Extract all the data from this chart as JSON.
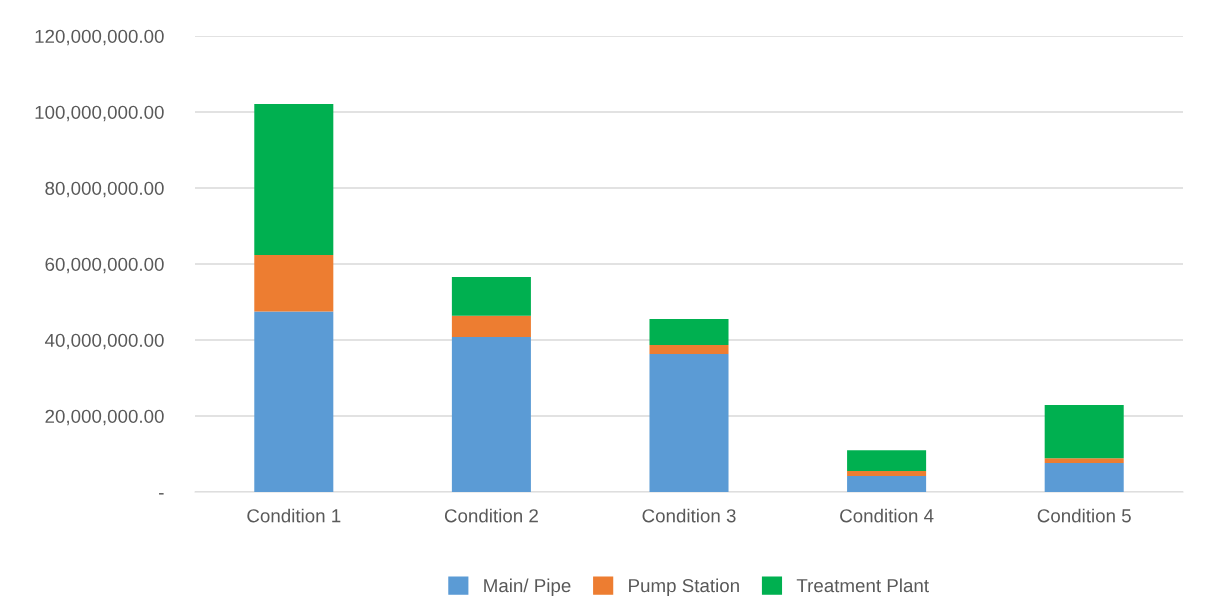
{
  "chart_data": {
    "type": "bar",
    "stacked": true,
    "categories": [
      "Condition 1",
      "Condition 2",
      "Condition 3",
      "Condition 4",
      "Condition 5"
    ],
    "series": [
      {
        "name": "Main/ Pipe",
        "color": "#5b9bd5",
        "values": [
          47500000,
          40800000,
          36300000,
          4200000,
          7600000
        ]
      },
      {
        "name": "Pump Station",
        "color": "#ed7d31",
        "values": [
          14900000,
          5600000,
          2400000,
          1300000,
          1300000
        ]
      },
      {
        "name": "Treatment Plant",
        "color": "#00b050",
        "values": [
          39700000,
          10200000,
          6800000,
          5500000,
          14000000
        ]
      }
    ],
    "ylim": [
      0,
      120000000
    ],
    "yticks": [
      {
        "value": 0,
        "label": "-"
      },
      {
        "value": 20000000,
        "label": "20,000,000.00"
      },
      {
        "value": 40000000,
        "label": "40,000,000.00"
      },
      {
        "value": 60000000,
        "label": "60,000,000.00"
      },
      {
        "value": 80000000,
        "label": "80,000,000.00"
      },
      {
        "value": 100000000,
        "label": "100,000,000.00"
      },
      {
        "value": 120000000,
        "label": "120,000,000.00"
      }
    ],
    "grid": "y",
    "legend": "bottom"
  }
}
